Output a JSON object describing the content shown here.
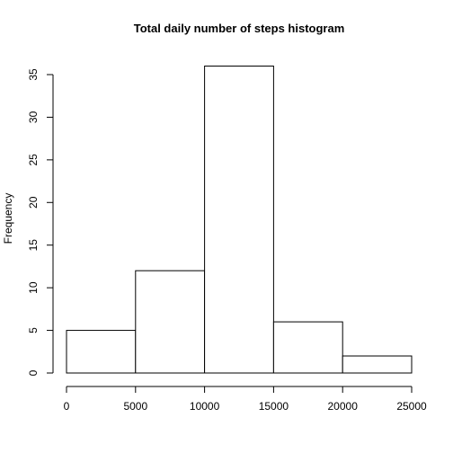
{
  "chart_data": {
    "type": "bar",
    "title": "Total daily number of steps histogram",
    "xlabel": "",
    "ylabel": "Frequency",
    "bins": [
      {
        "start": 0,
        "end": 5000,
        "value": 5
      },
      {
        "start": 5000,
        "end": 10000,
        "value": 12
      },
      {
        "start": 10000,
        "end": 15000,
        "value": 36
      },
      {
        "start": 15000,
        "end": 20000,
        "value": 6
      },
      {
        "start": 20000,
        "end": 25000,
        "value": 2
      }
    ],
    "xlim": [
      0,
      25000
    ],
    "ylim": [
      0,
      35
    ],
    "x_ticks": [
      {
        "value": 0,
        "label": "0"
      },
      {
        "value": 5000,
        "label": "5000"
      },
      {
        "value": 10000,
        "label": "10000"
      },
      {
        "value": 15000,
        "label": "15000"
      },
      {
        "value": 20000,
        "label": "20000"
      },
      {
        "value": 25000,
        "label": "25000"
      }
    ],
    "y_ticks": [
      {
        "value": 0,
        "label": "0"
      },
      {
        "value": 5,
        "label": "5"
      },
      {
        "value": 10,
        "label": "10"
      },
      {
        "value": 15,
        "label": "15"
      },
      {
        "value": 20,
        "label": "20"
      },
      {
        "value": 25,
        "label": "25"
      },
      {
        "value": 30,
        "label": "30"
      },
      {
        "value": 35,
        "label": "35"
      }
    ],
    "grid": false,
    "colors": {
      "bar_fill": "#ffffff",
      "bar_stroke": "#000000",
      "axis": "#000000",
      "background": "#ffffff"
    }
  }
}
